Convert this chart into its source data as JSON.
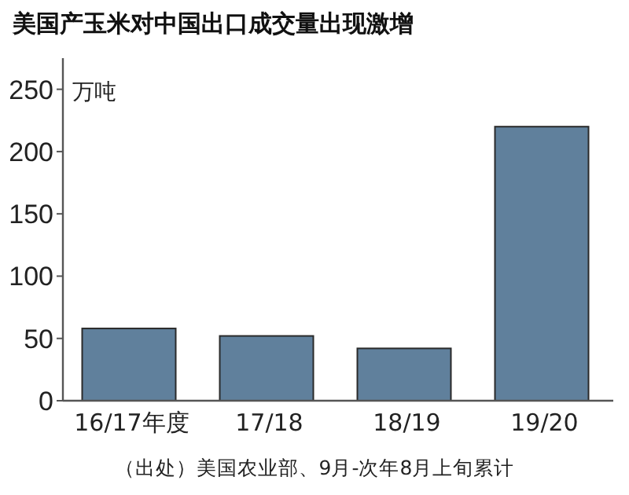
{
  "chart_data": {
    "type": "bar",
    "title": "美国产玉米对中国出口成交量出现激增",
    "ylabel": "万吨",
    "categories": [
      "16/17年度",
      "17/18",
      "18/19",
      "19/20"
    ],
    "values": [
      58,
      52,
      42,
      220
    ],
    "color": "#60809c",
    "ylim": [
      0,
      275
    ],
    "yticks": [
      0,
      50,
      100,
      150,
      200,
      250
    ],
    "grid": false,
    "annotations": [
      "（出处）美国农业部、9月-次年8月上旬累计"
    ]
  }
}
